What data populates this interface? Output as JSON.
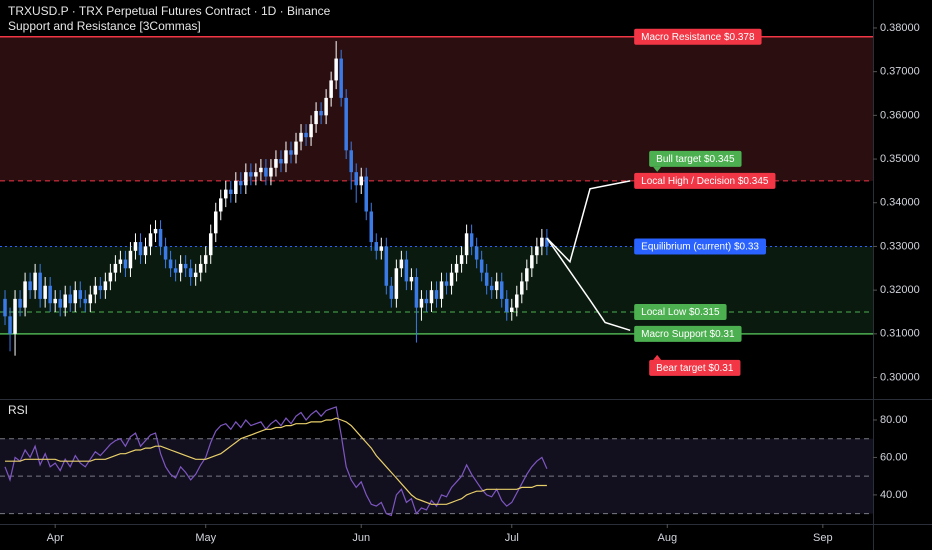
{
  "chart_data": [
    {
      "type": "candlestick",
      "title": "TRXUSD.P · TRX Perpetual Futures Contract · 1D · Binance",
      "subtitle": "Support and Resistance [3Commas]",
      "xlim": [
        -1,
        173
      ],
      "xticks": [
        {
          "value": 10,
          "label": "Apr"
        },
        {
          "value": 40,
          "label": "May"
        },
        {
          "value": 71,
          "label": "Jun"
        },
        {
          "value": 101,
          "label": "Jul"
        },
        {
          "value": 132,
          "label": "Aug"
        },
        {
          "value": 163,
          "label": "Sep"
        }
      ],
      "ylim": [
        0.296,
        0.3864
      ],
      "yticks": [
        {
          "value": 0.3,
          "label": "0.30000"
        },
        {
          "value": 0.31,
          "label": "0.31000"
        },
        {
          "value": 0.32,
          "label": "0.32000"
        },
        {
          "value": 0.33,
          "label": "0.33000"
        },
        {
          "value": 0.34,
          "label": "0.34000"
        },
        {
          "value": 0.35,
          "label": "0.35000"
        },
        {
          "value": 0.36,
          "label": "0.36000"
        },
        {
          "value": 0.37,
          "label": "0.37000"
        },
        {
          "value": 0.38,
          "label": "0.38000"
        }
      ],
      "up_color": "#ffffff",
      "down_color": "#3b7be8",
      "candles": {
        "open": [
          0.318,
          0.314,
          0.31,
          0.318,
          0.316,
          0.322,
          0.32,
          0.324,
          0.318,
          0.321,
          0.317,
          0.318,
          0.316,
          0.319,
          0.317,
          0.32,
          0.318,
          0.317,
          0.319,
          0.321,
          0.32,
          0.322,
          0.324,
          0.326,
          0.327,
          0.325,
          0.329,
          0.331,
          0.328,
          0.33,
          0.333,
          0.334,
          0.33,
          0.327,
          0.325,
          0.324,
          0.326,
          0.325,
          0.323,
          0.324,
          0.326,
          0.328,
          0.333,
          0.338,
          0.341,
          0.343,
          0.342,
          0.345,
          0.344,
          0.347,
          0.346,
          0.347,
          0.348,
          0.346,
          0.348,
          0.35,
          0.349,
          0.352,
          0.351,
          0.354,
          0.356,
          0.355,
          0.358,
          0.361,
          0.36,
          0.364,
          0.368,
          0.373,
          0.364,
          0.352,
          0.347,
          0.344,
          0.346,
          0.338,
          0.331,
          0.329,
          0.33,
          0.321,
          0.318,
          0.325,
          0.327,
          0.322,
          0.323,
          0.316,
          0.318,
          0.317,
          0.32,
          0.318,
          0.322,
          0.321,
          0.324,
          0.326,
          0.328,
          0.333,
          0.33,
          0.327,
          0.324,
          0.321,
          0.32,
          0.322,
          0.318,
          0.315,
          0.316,
          0.319,
          0.322,
          0.325,
          0.328,
          0.33,
          0.332
        ],
        "high": [
          0.32,
          0.316,
          0.32,
          0.32,
          0.324,
          0.324,
          0.326,
          0.326,
          0.323,
          0.323,
          0.32,
          0.32,
          0.321,
          0.321,
          0.322,
          0.322,
          0.32,
          0.321,
          0.323,
          0.323,
          0.324,
          0.326,
          0.328,
          0.329,
          0.329,
          0.331,
          0.333,
          0.333,
          0.332,
          0.335,
          0.336,
          0.336,
          0.332,
          0.329,
          0.327,
          0.328,
          0.328,
          0.327,
          0.326,
          0.328,
          0.33,
          0.335,
          0.34,
          0.343,
          0.345,
          0.345,
          0.347,
          0.347,
          0.349,
          0.349,
          0.349,
          0.35,
          0.35,
          0.35,
          0.352,
          0.352,
          0.354,
          0.354,
          0.356,
          0.358,
          0.358,
          0.36,
          0.363,
          0.363,
          0.366,
          0.37,
          0.377,
          0.375,
          0.366,
          0.354,
          0.349,
          0.348,
          0.348,
          0.34,
          0.333,
          0.332,
          0.332,
          0.323,
          0.327,
          0.329,
          0.329,
          0.325,
          0.325,
          0.32,
          0.32,
          0.322,
          0.322,
          0.324,
          0.324,
          0.326,
          0.328,
          0.33,
          0.335,
          0.335,
          0.332,
          0.329,
          0.326,
          0.323,
          0.324,
          0.324,
          0.32,
          0.318,
          0.321,
          0.324,
          0.327,
          0.33,
          0.332,
          0.334,
          0.334
        ],
        "low": [
          0.312,
          0.306,
          0.305,
          0.314,
          0.314,
          0.318,
          0.318,
          0.316,
          0.316,
          0.315,
          0.315,
          0.314,
          0.314,
          0.315,
          0.315,
          0.316,
          0.315,
          0.315,
          0.317,
          0.318,
          0.318,
          0.32,
          0.322,
          0.324,
          0.323,
          0.323,
          0.327,
          0.326,
          0.326,
          0.328,
          0.331,
          0.328,
          0.325,
          0.323,
          0.322,
          0.322,
          0.323,
          0.321,
          0.321,
          0.322,
          0.324,
          0.326,
          0.331,
          0.336,
          0.339,
          0.34,
          0.34,
          0.342,
          0.342,
          0.344,
          0.344,
          0.345,
          0.344,
          0.344,
          0.346,
          0.347,
          0.347,
          0.349,
          0.349,
          0.352,
          0.353,
          0.353,
          0.356,
          0.358,
          0.358,
          0.362,
          0.366,
          0.362,
          0.35,
          0.343,
          0.34,
          0.342,
          0.336,
          0.329,
          0.327,
          0.327,
          0.319,
          0.316,
          0.316,
          0.323,
          0.32,
          0.32,
          0.308,
          0.313,
          0.315,
          0.315,
          0.316,
          0.316,
          0.319,
          0.319,
          0.322,
          0.324,
          0.326,
          0.328,
          0.325,
          0.322,
          0.319,
          0.318,
          0.318,
          0.316,
          0.313,
          0.313,
          0.314,
          0.317,
          0.32,
          0.323,
          0.326,
          0.328,
          0.328
        ],
        "close": [
          0.314,
          0.31,
          0.318,
          0.316,
          0.322,
          0.32,
          0.324,
          0.318,
          0.321,
          0.317,
          0.318,
          0.316,
          0.319,
          0.317,
          0.32,
          0.318,
          0.317,
          0.319,
          0.321,
          0.32,
          0.322,
          0.324,
          0.326,
          0.327,
          0.325,
          0.329,
          0.331,
          0.328,
          0.33,
          0.333,
          0.334,
          0.33,
          0.327,
          0.325,
          0.324,
          0.326,
          0.325,
          0.323,
          0.324,
          0.326,
          0.328,
          0.333,
          0.338,
          0.341,
          0.343,
          0.342,
          0.345,
          0.344,
          0.347,
          0.346,
          0.347,
          0.348,
          0.346,
          0.348,
          0.35,
          0.349,
          0.352,
          0.351,
          0.354,
          0.356,
          0.355,
          0.358,
          0.361,
          0.36,
          0.364,
          0.368,
          0.373,
          0.364,
          0.352,
          0.347,
          0.344,
          0.346,
          0.338,
          0.331,
          0.329,
          0.33,
          0.321,
          0.318,
          0.325,
          0.327,
          0.322,
          0.323,
          0.316,
          0.318,
          0.317,
          0.32,
          0.318,
          0.322,
          0.321,
          0.324,
          0.326,
          0.328,
          0.333,
          0.33,
          0.327,
          0.324,
          0.321,
          0.32,
          0.322,
          0.318,
          0.315,
          0.316,
          0.319,
          0.322,
          0.325,
          0.328,
          0.33,
          0.332,
          0.33
        ]
      },
      "zones": [
        {
          "from": 0.378,
          "to": 0.345,
          "color": "#2a0e10"
        },
        {
          "from": 0.33,
          "to": 0.31,
          "color": "#0b1a0e"
        }
      ],
      "levels": [
        {
          "value": 0.378,
          "label": "Macro Resistance $0.378",
          "color": "#f23645",
          "style": "solid"
        },
        {
          "value": 0.345,
          "label": "Local High / Decision $0.345",
          "color": "#f23645",
          "style": "dashed"
        },
        {
          "value": 0.33,
          "label": "Equilibrium (current) $0.33",
          "color": "#2962ff",
          "style": "dotted"
        },
        {
          "value": 0.315,
          "label": "Local Low $0.315",
          "color": "#4caf50",
          "style": "dashed"
        },
        {
          "value": 0.31,
          "label": "Macro Support $0.31",
          "color": "#4caf50",
          "style": "solid"
        }
      ],
      "projections": [
        {
          "x": [
            108,
            112.6,
            116.6,
            124.6
          ],
          "values": [
            0.3319,
            0.3265,
            0.3432,
            0.345
          ]
        },
        {
          "x": [
            108,
            116.6,
            119.6,
            124.6
          ],
          "values": [
            0.3319,
            0.3177,
            0.3126,
            0.3108
          ]
        }
      ],
      "targets": [
        {
          "value": 0.345,
          "label": "Bull target $0.345",
          "color": "#4caf50",
          "side": "above"
        },
        {
          "value": 0.31,
          "label": "Bear target $0.31",
          "color": "#f23645",
          "side": "below"
        }
      ]
    },
    {
      "type": "line",
      "title": "RSI",
      "xlim": [
        -1,
        173
      ],
      "ylim": [
        25,
        88
      ],
      "yticks": [
        {
          "value": 40,
          "label": "40.00"
        },
        {
          "value": 60,
          "label": "60.00"
        },
        {
          "value": 80,
          "label": "80.00"
        }
      ],
      "hlines": [
        70,
        50,
        30
      ],
      "fill_range": [
        30,
        70
      ],
      "series": [
        {
          "color": "#7e57c2",
          "values": [
            55,
            48,
            60,
            58,
            64,
            60,
            66,
            56,
            62,
            55,
            57,
            53,
            59,
            55,
            61,
            57,
            55,
            59,
            63,
            61,
            64,
            67,
            69,
            70,
            66,
            71,
            73,
            66,
            69,
            72,
            73,
            62,
            55,
            51,
            49,
            55,
            52,
            48,
            51,
            56,
            60,
            68,
            74,
            77,
            78,
            75,
            79,
            76,
            80,
            77,
            78,
            79,
            75,
            78,
            80,
            77,
            81,
            78,
            82,
            84,
            80,
            83,
            85,
            82,
            85,
            86,
            87,
            72,
            55,
            48,
            44,
            47,
            40,
            35,
            34,
            36,
            30,
            29,
            40,
            43,
            36,
            38,
            30,
            33,
            32,
            37,
            34,
            40,
            39,
            44,
            47,
            50,
            56,
            51,
            47,
            43,
            40,
            39,
            43,
            37,
            34,
            36,
            41,
            46,
            51,
            55,
            58,
            60,
            54
          ]
        },
        {
          "color": "#e8cf6a",
          "values": [
            58,
            58,
            58,
            58,
            59,
            59,
            59,
            59,
            59,
            59,
            59,
            58,
            58,
            58,
            58,
            58,
            58,
            58,
            59,
            59,
            59,
            60,
            61,
            62,
            62,
            63,
            64,
            64,
            65,
            65,
            66,
            66,
            65,
            64,
            63,
            62,
            61,
            60,
            59,
            59,
            59,
            60,
            61,
            62,
            64,
            66,
            68,
            70,
            71,
            72,
            73,
            74,
            75,
            75,
            76,
            76,
            77,
            77,
            78,
            78,
            78,
            79,
            79,
            79,
            80,
            80,
            81,
            80,
            79,
            77,
            74,
            71,
            68,
            65,
            61,
            58,
            55,
            52,
            49,
            46,
            43,
            40,
            38,
            37,
            36,
            35,
            35,
            35,
            35,
            36,
            37,
            38,
            40,
            41,
            42,
            42,
            43,
            43,
            43,
            43,
            43,
            43,
            43,
            44,
            44,
            44,
            45,
            45,
            45
          ]
        }
      ]
    }
  ]
}
